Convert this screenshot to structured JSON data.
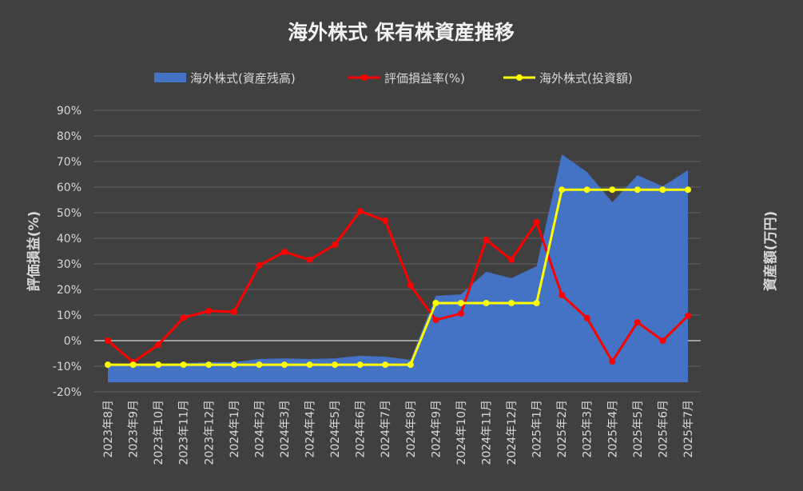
{
  "chart_data": {
    "type": "line+area",
    "title": "海外株式 保有株資産推移",
    "ylabel": "評価損益(%)",
    "y2label": "資産額(万円)",
    "ylim": [
      -20,
      90
    ],
    "yticks": [
      "-20%",
      "-10%",
      "0%",
      "10%",
      "20%",
      "30%",
      "40%",
      "50%",
      "60%",
      "70%",
      "80%",
      "90%"
    ],
    "y2_tick_labels_shown": false,
    "grid": true,
    "legend_position": "top",
    "categories": [
      "2023年8月",
      "2023年9月",
      "2023年10月",
      "2023年11月",
      "2023年12月",
      "2024年1月",
      "2024年2月",
      "2024年3月",
      "2024年4月",
      "2024年5月",
      "2024年6月",
      "2024年7月",
      "2024年8月",
      "2024年9月",
      "2024年10月",
      "2024年11月",
      "2024年12月",
      "2025年1月",
      "2025年2月",
      "2025年3月",
      "2025年4月",
      "2025年5月",
      "2025年6月",
      "2025年7月"
    ],
    "series": [
      {
        "name": "海外株式(資産残高)",
        "kind": "area",
        "axis": "secondary",
        "color": "#4472c4",
        "values": [
          -9.4,
          -9.4,
          -9.1,
          -8.8,
          -8.4,
          -8.4,
          -7.2,
          -6.9,
          -7.2,
          -6.9,
          -5.9,
          -6.3,
          -7.5,
          17.5,
          18.1,
          26.9,
          24.4,
          29.1,
          72.8,
          65.9,
          54.1,
          64.7,
          60.3,
          66.6
        ]
      },
      {
        "name": "評価損益率(%)",
        "kind": "line",
        "axis": "primary",
        "color": "#ff0000",
        "values": [
          0,
          -8.4,
          -1.6,
          9,
          11.6,
          11.3,
          29.4,
          34.7,
          31.6,
          37.5,
          50.6,
          46.9,
          21.6,
          8.1,
          10.6,
          39.4,
          31.6,
          46.3,
          17.8,
          8.8,
          -8.1,
          7.2,
          0,
          9.7
        ]
      },
      {
        "name": "海外株式(投資額)",
        "kind": "line",
        "axis": "secondary",
        "color": "#ffff00",
        "values": [
          -9.4,
          -9.4,
          -9.4,
          -9.4,
          -9.4,
          -9.4,
          -9.4,
          -9.4,
          -9.4,
          -9.4,
          -9.4,
          -9.4,
          -9.4,
          14.7,
          14.7,
          14.7,
          14.7,
          14.7,
          59,
          59,
          59,
          59,
          59,
          59
        ]
      }
    ],
    "area_baseline": -16.3
  }
}
